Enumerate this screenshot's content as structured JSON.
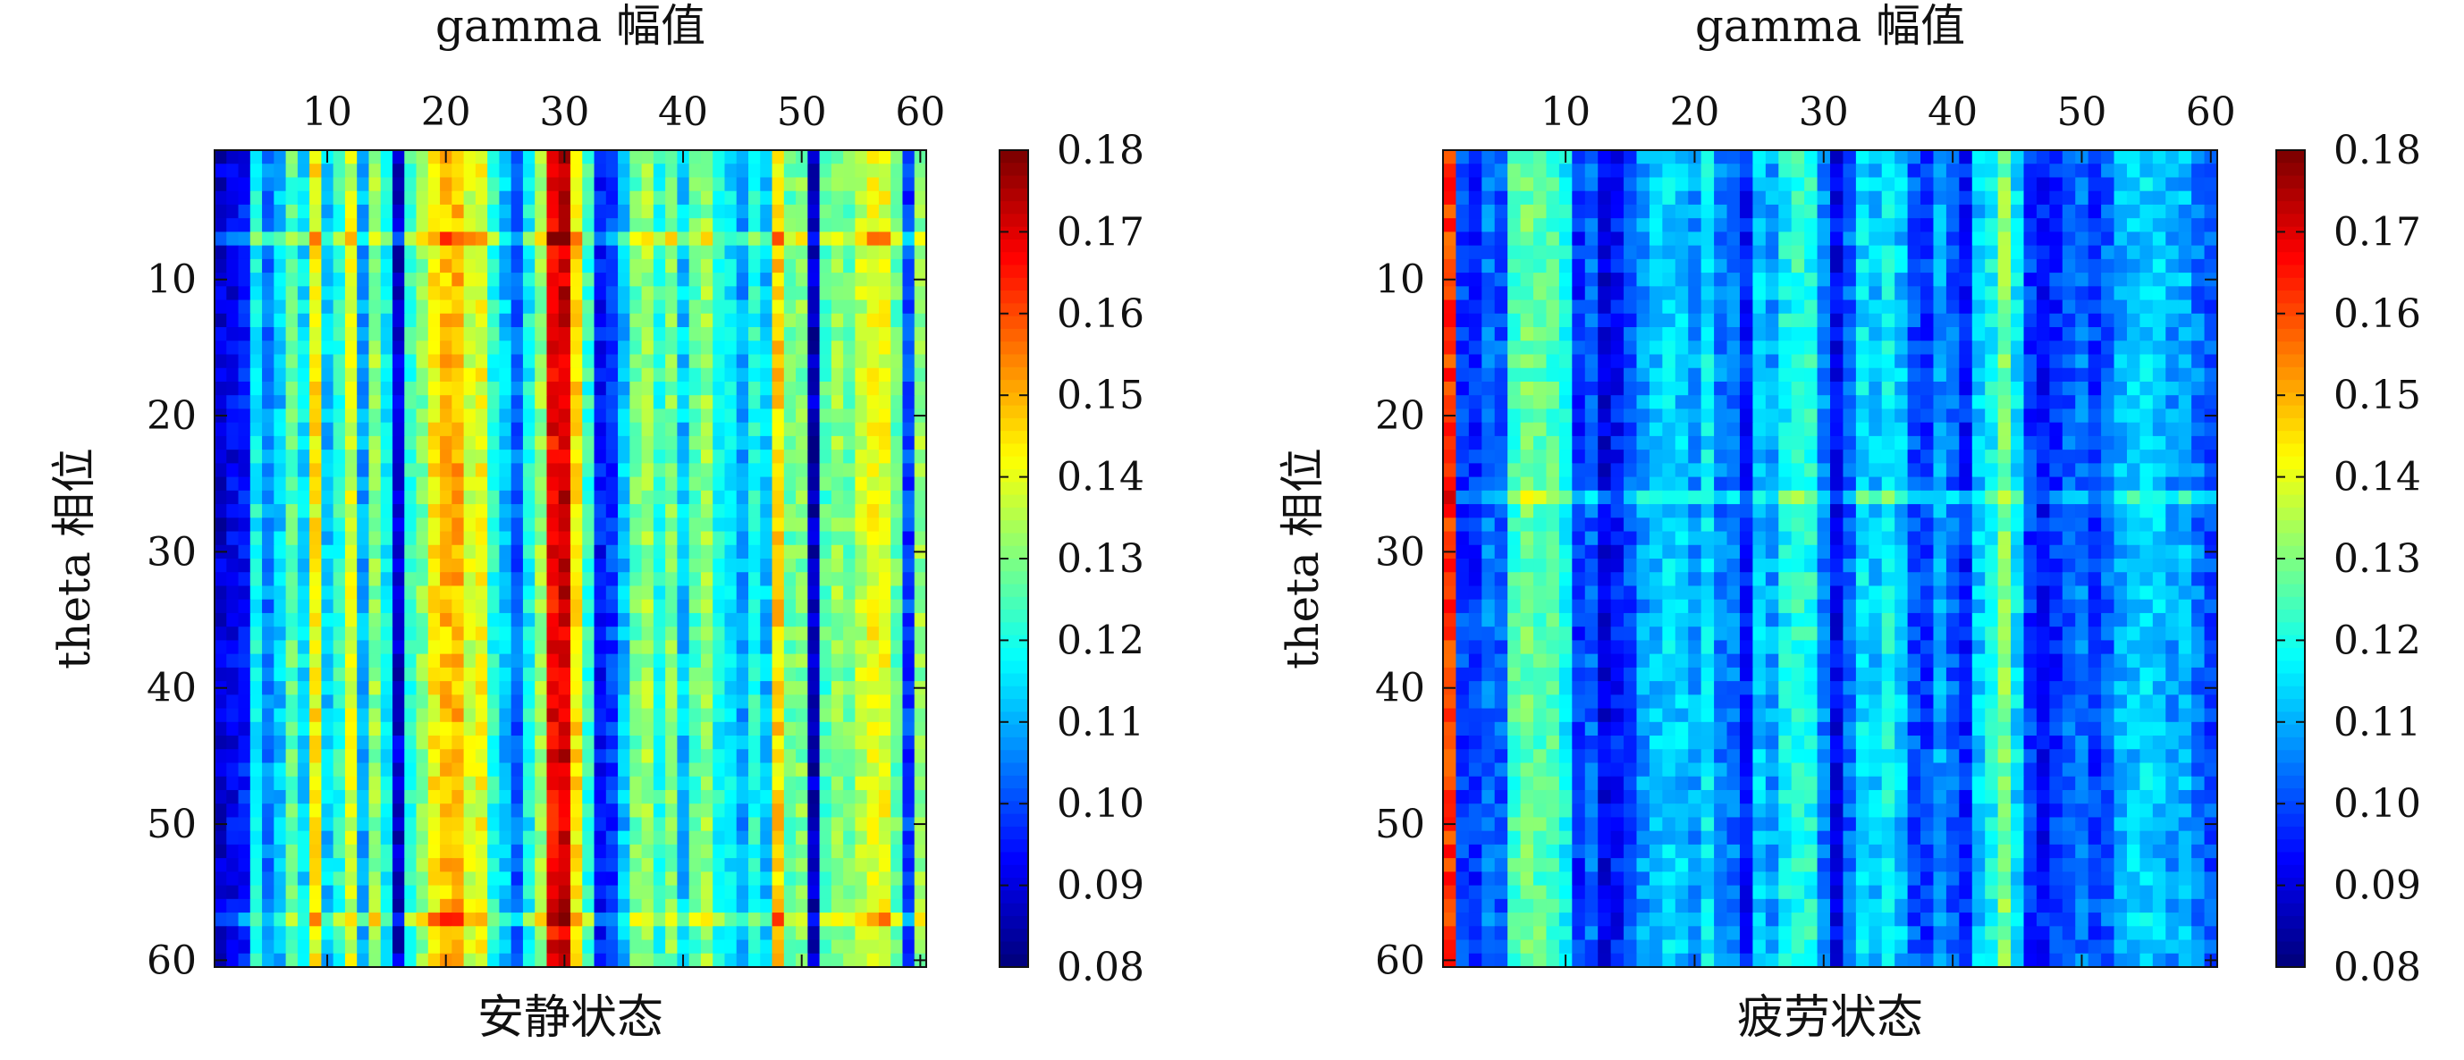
{
  "chart_data": [
    {
      "type": "heatmap",
      "title": "",
      "xlabel": "gamma 幅值",
      "ylabel": "theta 相位",
      "caption": "安静状态",
      "x_ticks": [
        10,
        20,
        30,
        40,
        50,
        60
      ],
      "y_ticks": [
        10,
        20,
        30,
        40,
        50,
        60
      ],
      "x_range": [
        1,
        60
      ],
      "y_range": [
        1,
        60
      ],
      "color_range": [
        0.08,
        0.18
      ],
      "colorbar_ticks": [
        "0.18",
        "0.17",
        "0.16",
        "0.15",
        "0.14",
        "0.13",
        "0.12",
        "0.11",
        "0.10",
        "0.09",
        "0.08"
      ],
      "colormap": "jet",
      "column_values": [
        0.088,
        0.091,
        0.094,
        0.118,
        0.105,
        0.112,
        0.126,
        0.115,
        0.143,
        0.112,
        0.121,
        0.138,
        0.109,
        0.132,
        0.118,
        0.088,
        0.122,
        0.13,
        0.143,
        0.148,
        0.15,
        0.138,
        0.141,
        0.121,
        0.112,
        0.102,
        0.118,
        0.132,
        0.168,
        0.172,
        0.145,
        0.122,
        0.094,
        0.098,
        0.111,
        0.128,
        0.133,
        0.121,
        0.13,
        0.112,
        0.126,
        0.132,
        0.119,
        0.115,
        0.108,
        0.12,
        0.112,
        0.146,
        0.128,
        0.13,
        0.086,
        0.125,
        0.132,
        0.128,
        0.136,
        0.141,
        0.14,
        0.128,
        0.098,
        0.132
      ],
      "highlight_rows": [
        7,
        57
      ],
      "highlight_boost": 0.012
    },
    {
      "type": "heatmap",
      "title": "",
      "xlabel": "gamma 幅值",
      "ylabel": "theta 相位",
      "caption": "疲劳状态",
      "x_ticks": [
        10,
        20,
        30,
        40,
        50,
        60
      ],
      "y_ticks": [
        10,
        20,
        30,
        40,
        50,
        60
      ],
      "x_range": [
        1,
        60
      ],
      "y_range": [
        1,
        60
      ],
      "color_range": [
        0.08,
        0.18
      ],
      "colorbar_ticks": [
        "0.18",
        "0.17",
        "0.16",
        "0.15",
        "0.14",
        "0.13",
        "0.12",
        "0.11",
        "0.10",
        "0.09",
        "0.08"
      ],
      "colormap": "jet",
      "column_values": [
        0.162,
        0.098,
        0.097,
        0.104,
        0.101,
        0.124,
        0.128,
        0.126,
        0.125,
        0.118,
        0.097,
        0.102,
        0.09,
        0.094,
        0.1,
        0.108,
        0.112,
        0.114,
        0.112,
        0.108,
        0.116,
        0.105,
        0.104,
        0.095,
        0.112,
        0.108,
        0.118,
        0.122,
        0.12,
        0.105,
        0.092,
        0.102,
        0.115,
        0.112,
        0.118,
        0.112,
        0.1,
        0.098,
        0.108,
        0.102,
        0.095,
        0.112,
        0.118,
        0.13,
        0.115,
        0.098,
        0.094,
        0.097,
        0.102,
        0.104,
        0.098,
        0.102,
        0.11,
        0.112,
        0.114,
        0.112,
        0.108,
        0.11,
        0.104,
        0.1
      ],
      "highlight_rows": [
        26
      ],
      "highlight_boost": 0.01
    }
  ]
}
